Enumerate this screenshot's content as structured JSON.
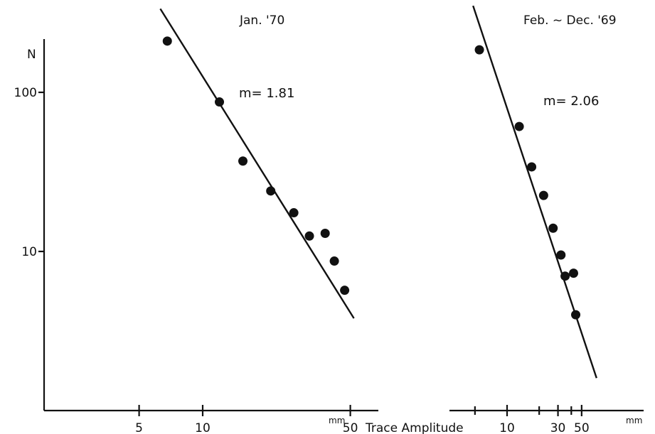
{
  "chart_data": [
    {
      "type": "scatter",
      "title": "Jan. '70",
      "annotation": "m= 1.81",
      "ylabel": "N",
      "xlabel": "Trace Amplitude",
      "x_unit": "mm",
      "x_scale": "log",
      "y_scale": "log",
      "x_ticks": [
        5,
        10,
        50
      ],
      "x_tick_labels": [
        "5",
        "10",
        "50"
      ],
      "y_ticks": [
        10,
        100
      ],
      "y_tick_labels": [
        "10",
        "100"
      ],
      "points": [
        {
          "x": 6.8,
          "y": 210
        },
        {
          "x": 12,
          "y": 87
        },
        {
          "x": 15.5,
          "y": 37
        },
        {
          "x": 21,
          "y": 24
        },
        {
          "x": 27,
          "y": 17.5
        },
        {
          "x": 32,
          "y": 12.5
        },
        {
          "x": 38,
          "y": 13
        },
        {
          "x": 42,
          "y": 8.7
        },
        {
          "x": 47,
          "y": 5.7
        }
      ],
      "fit_line": {
        "slope_label": "m= 1.81",
        "start": {
          "x": 6.3,
          "y": 335
        },
        "end": {
          "x": 52,
          "y": 3.8
        }
      }
    },
    {
      "type": "scatter",
      "title": "Feb. ~ Dec. '69",
      "annotation": "m= 2.06",
      "xlabel": "Trace Amplitude",
      "x_unit": "mm",
      "x_scale": "log",
      "y_scale": "log",
      "x_ticks": [
        10,
        30,
        50
      ],
      "x_tick_labels": [
        "10",
        "30",
        "50"
      ],
      "points": [
        {
          "x": 5.5,
          "y": 185
        },
        {
          "x": 13,
          "y": 61
        },
        {
          "x": 17,
          "y": 34
        },
        {
          "x": 22,
          "y": 22.5
        },
        {
          "x": 27,
          "y": 14
        },
        {
          "x": 32,
          "y": 9.5
        },
        {
          "x": 35,
          "y": 7
        },
        {
          "x": 42,
          "y": 7.3
        },
        {
          "x": 44,
          "y": 4
        }
      ],
      "fit_line": {
        "slope_label": "m= 2.06",
        "start": {
          "x": 4.8,
          "y": 350
        },
        "end": {
          "x": 69,
          "y": 1.6
        }
      }
    }
  ]
}
